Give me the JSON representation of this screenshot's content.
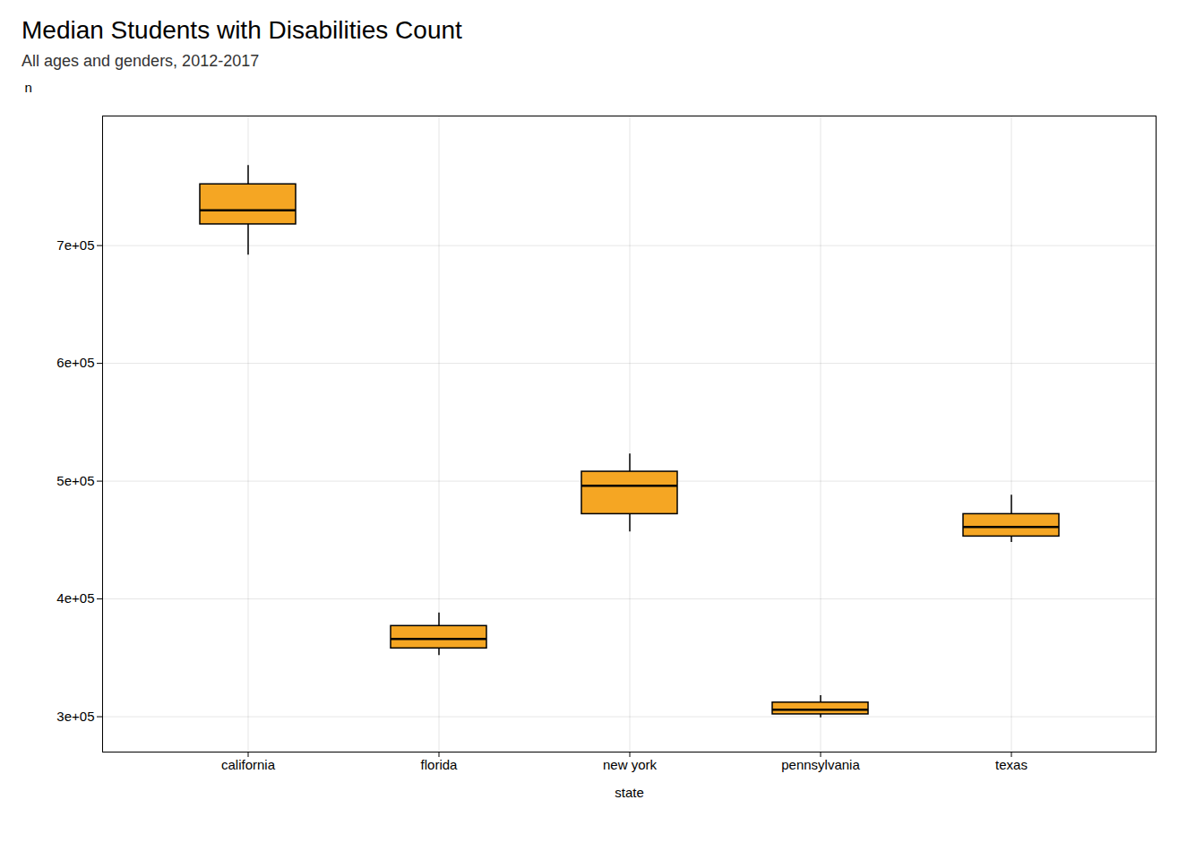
{
  "chart_data": {
    "type": "box",
    "title": "Median Students with Disabilities Count",
    "subtitle": "All ages and genders, 2012-2017",
    "xlabel": "state",
    "ylabel": "n",
    "categories": [
      "california",
      "florida",
      "new york",
      "pennsylvania",
      "texas"
    ],
    "whisker_low": [
      692000,
      352000,
      457000,
      299000,
      448000
    ],
    "q1": [
      718000,
      358000,
      472000,
      302000,
      453000
    ],
    "median": [
      730000,
      366000,
      496000,
      306000,
      461000
    ],
    "q3": [
      752000,
      377000,
      508000,
      312000,
      472000
    ],
    "whisker_high": [
      768000,
      388000,
      523000,
      318000,
      488000
    ],
    "color": "#F5A623",
    "ylim": [
      270000,
      810000
    ],
    "yticks": [
      {
        "value": 300000,
        "label": "3e+05"
      },
      {
        "value": 400000,
        "label": "4e+05"
      },
      {
        "value": 500000,
        "label": "5e+05"
      },
      {
        "value": 600000,
        "label": "6e+05"
      },
      {
        "value": 700000,
        "label": "7e+05"
      }
    ],
    "grid": true
  }
}
